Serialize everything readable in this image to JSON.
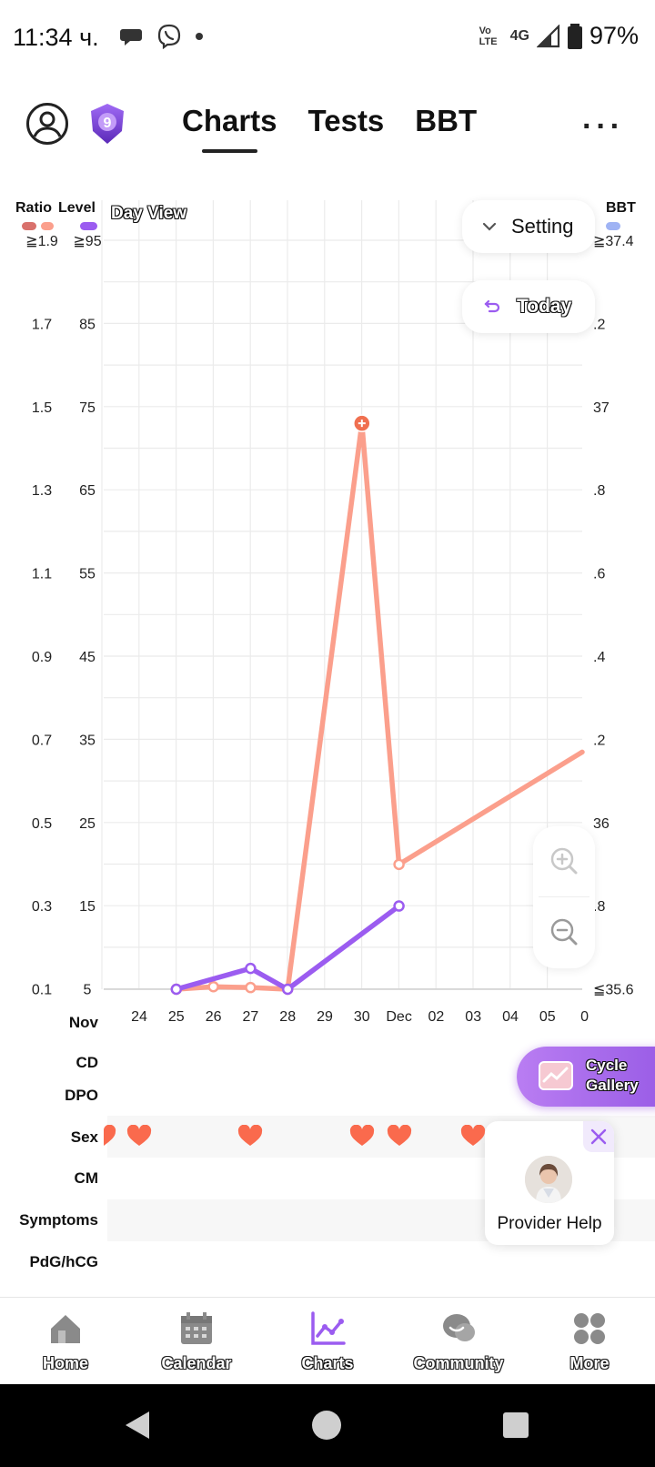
{
  "status_bar": {
    "time": "11:34 ч.",
    "network": "4G",
    "volte": "Vo LTE",
    "battery": "97%"
  },
  "header": {
    "badge_number": "9",
    "tabs": [
      {
        "label": "Charts",
        "active": true
      },
      {
        "label": "Tests",
        "active": false
      },
      {
        "label": "BBT",
        "active": false
      }
    ],
    "more": "···"
  },
  "chart": {
    "ratio_header": "Ratio",
    "level_header": "Level",
    "bbt_header": "BBT",
    "day_view": "Day View",
    "setting_label": "Setting",
    "today_label": "Today",
    "month_label": "Nov",
    "colors": {
      "ratio_dark": "#d9716c",
      "ratio_light": "#fb9f8c",
      "level": "#9b5cf0",
      "bbt": "#9fb3f4",
      "grid": "#ebebeb"
    }
  },
  "chart_data": {
    "type": "line",
    "title": "",
    "x": [
      "24",
      "25",
      "26",
      "27",
      "28",
      "29",
      "30",
      "Dec",
      "02",
      "03",
      "04",
      "05",
      "0"
    ],
    "x_label_prefix": "Nov",
    "ratio_axis_ticks": [
      "≧1.9",
      "1.7",
      "1.5",
      "1.3",
      "1.1",
      "0.9",
      "0.7",
      "0.5",
      "0.3",
      "0.1"
    ],
    "level_axis_ticks": [
      "≧95",
      "85",
      "75",
      "65",
      "55",
      "45",
      "35",
      "25",
      "15",
      "5"
    ],
    "bbt_axis_ticks": [
      "≧37.4",
      ".2",
      "37",
      ".8",
      ".6",
      ".4",
      ".2",
      "36",
      ".8",
      "≦35.6"
    ],
    "level_ylim": [
      5,
      95
    ],
    "series": [
      {
        "name": "Ratio",
        "color": "#fb9f8c",
        "points": [
          {
            "x": "25",
            "level": 5
          },
          {
            "x": "26",
            "level": 5.3
          },
          {
            "x": "27",
            "level": 5.2
          },
          {
            "x": "28",
            "level": 5
          },
          {
            "x": "30",
            "level": 73
          },
          {
            "x": "Dec",
            "level": 20
          },
          {
            "x": "0",
            "level": 33.5
          }
        ]
      },
      {
        "name": "Level",
        "color": "#9b5cf0",
        "points": [
          {
            "x": "25",
            "level": 5
          },
          {
            "x": "27",
            "level": 7.5
          },
          {
            "x": "28",
            "level": 5
          },
          {
            "x": "Dec",
            "level": 15
          }
        ]
      }
    ]
  },
  "rows": [
    {
      "label": "CD"
    },
    {
      "label": "DPO"
    },
    {
      "label": "Sex"
    },
    {
      "label": "CM"
    },
    {
      "label": "Symptoms"
    },
    {
      "label": "PdG/hCG"
    }
  ],
  "sex_days": [
    "24",
    "27",
    "30",
    "Dec",
    "03"
  ],
  "cycle_gallery": {
    "line1": "Cycle",
    "line2": "Gallery"
  },
  "provider_help": {
    "label": "Provider Help"
  },
  "bottom_nav": [
    {
      "label": "Home",
      "icon": "home-icon",
      "active": false
    },
    {
      "label": "Calendar",
      "icon": "calendar-icon",
      "active": false
    },
    {
      "label": "Charts",
      "icon": "charts-icon",
      "active": true
    },
    {
      "label": "Community",
      "icon": "community-icon",
      "active": false
    },
    {
      "label": "More",
      "icon": "more-grid-icon",
      "active": false
    }
  ]
}
